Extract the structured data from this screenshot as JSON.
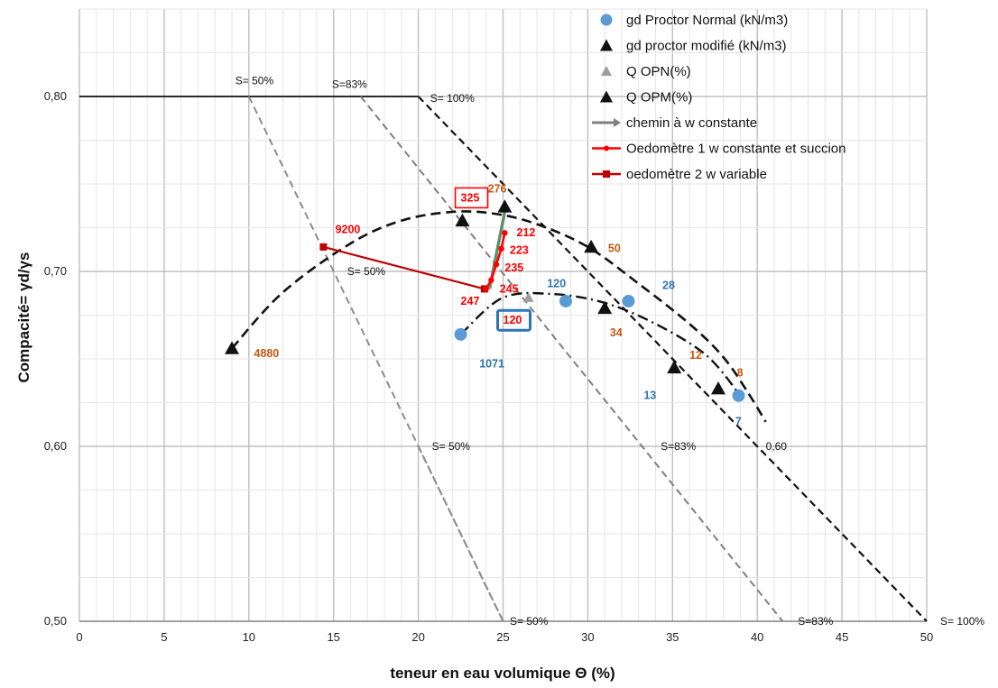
{
  "chart_data": {
    "type": "scatter",
    "xlabel": "teneur en eau volumique Θ (%)",
    "ylabel": "Compacité= γd/γs",
    "xlim": [
      0,
      50
    ],
    "ylim": [
      0.5,
      0.85
    ],
    "x_ticks": [
      "0",
      "5",
      "10",
      "15",
      "20",
      "25",
      "30",
      "35",
      "40",
      "45",
      "50"
    ],
    "y_ticks": [
      "0,50",
      "0,60",
      "0,70",
      "0,80"
    ],
    "grid": true,
    "legend_position": "top-right",
    "colors": {
      "proctor_normal": "#5b9bd5",
      "proctor_modifie": "#111111",
      "opn": "#9e9e9e",
      "chemin": "#7f7f7f",
      "oedo1": "#ff0000",
      "oedo2": "#c00000",
      "orange_label": "#c55a11",
      "blue_label": "#2e75b6",
      "red_label": "#ff0000"
    },
    "legend": [
      {
        "label": "gd Proctor Normal (kN/m3)",
        "marker": "circle-blue"
      },
      {
        "label": "gd proctor modifié (kN/m3)",
        "marker": "triangle-black"
      },
      {
        "label": "Q OPN(%)",
        "marker": "triangle-gray"
      },
      {
        "label": "Q OPM(%)",
        "marker": "triangle-black"
      },
      {
        "label": "chemin à w constante",
        "marker": "arrow-gray"
      },
      {
        "label": "Oedomètre 1 w constante et  succion",
        "marker": "line-red-dot"
      },
      {
        "label": "oedomètre 2 w variable",
        "marker": "line-darkred-square"
      }
    ],
    "series": [
      {
        "name": "gd Proctor Normal (kN/m3)",
        "points": [
          [
            22.5,
            0.664
          ],
          [
            28.7,
            0.683
          ],
          [
            32.4,
            0.683
          ],
          [
            38.9,
            0.629
          ]
        ]
      },
      {
        "name": "gd proctor modifié (kN/m3)",
        "points": [
          [
            9.0,
            0.656
          ],
          [
            22.6,
            0.729
          ],
          [
            25.1,
            0.737
          ],
          [
            30.2,
            0.714
          ],
          [
            31.0,
            0.679
          ],
          [
            35.1,
            0.645
          ],
          [
            37.7,
            0.633
          ]
        ]
      },
      {
        "name": "Q OPN(%)",
        "points": [
          [
            26.5,
            0.685
          ]
        ]
      },
      {
        "name": "chemin à w constante",
        "points": [
          [
            24.2,
            0.69
          ],
          [
            25.1,
            0.734
          ]
        ]
      },
      {
        "name": "Oedomètre 1 w constante et  succion",
        "points": [
          [
            25.1,
            0.722
          ],
          [
            24.9,
            0.713
          ],
          [
            24.6,
            0.704
          ],
          [
            24.3,
            0.695
          ],
          [
            24.0,
            0.69
          ]
        ]
      },
      {
        "name": "oedomètre 2 w variable",
        "points": [
          [
            14.4,
            0.714
          ],
          [
            23.9,
            0.69
          ]
        ]
      }
    ],
    "reference_lines": {
      "horizontal": [
        [
          0,
          0.8
        ],
        [
          20,
          0.8
        ]
      ],
      "s100": [
        [
          20,
          0.8
        ],
        [
          50,
          0.5
        ]
      ],
      "s83": [
        [
          16.6,
          0.8
        ],
        [
          41.5,
          0.5
        ]
      ],
      "s50": [
        [
          10,
          0.8
        ],
        [
          25,
          0.5
        ]
      ],
      "s50b": [
        [
          20,
          0.6
        ],
        [
          25,
          0.5
        ]
      ],
      "modifie_curve": [
        [
          9.0,
          0.656
        ],
        [
          12,
          0.688
        ],
        [
          16,
          0.716
        ],
        [
          19,
          0.729
        ],
        [
          22,
          0.734
        ],
        [
          24.5,
          0.733
        ],
        [
          27,
          0.727
        ],
        [
          30,
          0.714
        ],
        [
          33,
          0.693
        ],
        [
          36,
          0.67
        ],
        [
          38,
          0.651
        ],
        [
          39.5,
          0.63
        ],
        [
          40.5,
          0.614
        ]
      ],
      "normal_curve": [
        [
          22.5,
          0.664
        ],
        [
          25,
          0.685
        ],
        [
          28,
          0.687
        ],
        [
          31,
          0.682
        ],
        [
          34,
          0.67
        ],
        [
          37,
          0.652
        ],
        [
          39,
          0.629
        ]
      ]
    },
    "annotations": [
      {
        "text": "S= 50%",
        "x": 9.2,
        "y": 0.807,
        "color": "#111111"
      },
      {
        "text": "S=83%",
        "x": 14.9,
        "y": 0.805,
        "color": "#111111"
      },
      {
        "text": "S= 100%",
        "x": 20.7,
        "y": 0.797,
        "color": "#111111"
      },
      {
        "text": "S= 50%",
        "x": 15.8,
        "y": 0.698,
        "color": "#111111"
      },
      {
        "text": "S= 50%",
        "x": 20.8,
        "y": 0.598,
        "color": "#111111"
      },
      {
        "text": "S= 50%",
        "x": 25.4,
        "y": 0.498,
        "color": "#111111"
      },
      {
        "text": "S=83%",
        "x": 34.3,
        "y": 0.598,
        "color": "#111111"
      },
      {
        "text": "0,60",
        "x": 40.5,
        "y": 0.598,
        "color": "#111111"
      },
      {
        "text": "S=83%",
        "x": 42.4,
        "y": 0.498,
        "color": "#111111"
      },
      {
        "text": "S= 100%",
        "x": 50.8,
        "y": 0.498,
        "color": "#111111"
      },
      {
        "text": "4880",
        "x": 10.3,
        "y": 0.651,
        "color": "#c55a11"
      },
      {
        "text": "9200",
        "x": 15.1,
        "y": 0.722,
        "color": "#ff0000"
      },
      {
        "text": "325",
        "x": 22.5,
        "y": 0.74,
        "color": "#ff0000",
        "box": "#ff0000"
      },
      {
        "text": "276",
        "x": 24.1,
        "y": 0.745,
        "color": "#c55a11"
      },
      {
        "text": "212",
        "x": 25.8,
        "y": 0.72,
        "color": "#ff0000"
      },
      {
        "text": "223",
        "x": 25.4,
        "y": 0.71,
        "color": "#ff0000"
      },
      {
        "text": "235",
        "x": 25.1,
        "y": 0.7,
        "color": "#ff0000"
      },
      {
        "text": "245",
        "x": 24.8,
        "y": 0.688,
        "color": "#ff0000"
      },
      {
        "text": "247",
        "x": 22.5,
        "y": 0.681,
        "color": "#ff0000"
      },
      {
        "text": "120",
        "x": 25.0,
        "y": 0.67,
        "color": "#ff0000",
        "box": "#2e75b6"
      },
      {
        "text": "120",
        "x": 27.6,
        "y": 0.691,
        "color": "#2e75b6"
      },
      {
        "text": "50",
        "x": 31.2,
        "y": 0.711,
        "color": "#c55a11"
      },
      {
        "text": "28",
        "x": 34.4,
        "y": 0.69,
        "color": "#2e75b6"
      },
      {
        "text": "34",
        "x": 31.3,
        "y": 0.663,
        "color": "#c55a11"
      },
      {
        "text": "1071",
        "x": 23.6,
        "y": 0.645,
        "color": "#2e75b6"
      },
      {
        "text": "12",
        "x": 36.0,
        "y": 0.65,
        "color": "#c55a11"
      },
      {
        "text": "13",
        "x": 33.3,
        "y": 0.627,
        "color": "#2e75b6"
      },
      {
        "text": "8",
        "x": 38.8,
        "y": 0.64,
        "color": "#c55a11"
      },
      {
        "text": "7",
        "x": 38.7,
        "y": 0.612,
        "color": "#2e75b6"
      }
    ]
  }
}
